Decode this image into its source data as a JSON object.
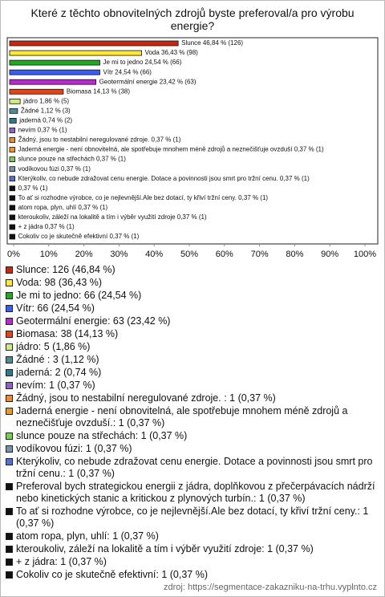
{
  "chart_data": {
    "type": "barh",
    "title": "Které z těchto obnovitelných zdrojů byste preferoval/a pro výrobu energie?",
    "values": [
      46.84,
      36.43,
      24.54,
      24.54,
      23.42,
      14.13,
      1.86,
      1.12,
      0.74,
      0.37,
      0.37,
      0.37,
      0.37,
      0.37,
      0.37,
      0.37,
      0.37,
      0.37,
      0.37,
      0.37,
      0.37
    ],
    "value_labels": [
      "Slunce 46,84 % (126)",
      "Voda 36,43 % (98)",
      "Je mi to jedno 24,54 % (66)",
      "Vítr 24,54 % (66)",
      "Geotermální energie 23,42 % (63)",
      "Biomasa 14,13 % (38)",
      "jádro 1,86 % (5)",
      "Žádné  1,12 % (3)",
      "jaderná 0,74 % (2)",
      "nevím 0,37 % (1)",
      "Žádný, jsou to nestabilní neregulované zdroje.  0,37 % (1)",
      "Jaderná energie - není obnovitelná, ale spotřebuje mnohem méně zdrojů a neznečišťuje ovzduší 0,37 % (1)",
      "slunce pouze na střechách 0,37 % (1)",
      "vodíkovou fúzi 0,37 % (1)",
      "Kterýkoliv, co nebude zdražovat cenu energie. Dotace a povinnosti jsou smrt pro tržní cenu. 0,37 % (1)",
      "0,37 % (1)",
      "To ať si rozhodne výrobce, co je nejlevnější.Ale bez dotací, ty křiví tržní ceny. 0,37 % (1)",
      "atom ropa, plyn, uhlí 0,37 % (1)",
      "kteroukoliv, záleží na lokalitě a tím i výběr využití zdroje 0,37 % (1)",
      "+ z jádra 0,37 % (1)",
      "Cokoliv co je skutečně efektivní 0,37 % (1)"
    ],
    "colors": [
      "#c8280f",
      "#ffe933",
      "#22a822",
      "#3a5cf0",
      "#b52ccc",
      "#e0461a",
      "#cdeb8b",
      "#4f8a96",
      "#2f7a8a",
      "#8f62c8",
      "#ee8a30",
      "#e89a28",
      "#7fc85f",
      "#7993a6",
      "#5870c8",
      "#111111",
      "#111111",
      "#111111",
      "#111111",
      "#111111",
      "#111111"
    ],
    "legend_labels": [
      "Slunce: 126 (46,84 %)",
      "Voda: 98 (36,43 %)",
      "Je mi to jedno: 66 (24,54 %)",
      "Vítr: 66 (24,54 %)",
      "Geotermální energie: 63 (23,42 %)",
      "Biomasa: 38 (14,13 %)",
      "jádro: 5 (1,86 %)",
      "Žádné : 3 (1,12 %)",
      "jaderná: 2 (0,74 %)",
      "nevím: 1 (0,37 %)",
      "Žádný, jsou to nestabilní neregulované zdroje. : 1 (0,37 %)",
      "Jaderná energie - není obnovitelná, ale spotřebuje mnohem méně zdrojů a neznečišťuje ovzduší.: 1 (0,37 %)",
      "slunce pouze na střechách: 1 (0,37 %)",
      "vodíkovou fúzi: 1 (0,37 %)",
      "Kterýkoliv, co nebude zdražovat cenu energie. Dotace a povinnosti jsou smrt pro tržní cenu.: 1 (0,37 %)",
      "Preferoval bych strategickou energii z jádra, doplňkovou z přečerpávacích nádrží nebo kinetických stanic a kritickou z plynových turbín.: 1 (0,37 %)",
      "To ať si rozhodne výrobce, co je nejlevnější.Ale bez dotací, ty křiví tržní ceny.: 1 (0,37 %)",
      "atom ropa, plyn, uhlí: 1 (0,37 %)",
      "kteroukoliv, záleží na lokalitě a tím i výběr využití zdroje: 1 (0,37 %)",
      "+ z jádra: 1 (0,37 %)",
      "Cokoliv co je skutečně efektivní: 1 (0,37 %)"
    ],
    "xlim": [
      0,
      100
    ],
    "xticks": [
      {
        "value": 0,
        "label": "0%"
      },
      {
        "value": 10,
        "label": "10%"
      },
      {
        "value": 20,
        "label": "20%"
      },
      {
        "value": 30,
        "label": "30%"
      },
      {
        "value": 40,
        "label": "40%"
      },
      {
        "value": 50,
        "label": "50%"
      },
      {
        "value": 60,
        "label": "60%"
      },
      {
        "value": 70,
        "label": "70%"
      },
      {
        "value": 80,
        "label": "80%"
      },
      {
        "value": 90,
        "label": "90%"
      },
      {
        "value": 100,
        "label": "100%"
      }
    ],
    "source": "zdroj: https://segmentace-zakazniku-na-trhu.vyplnto.cz"
  }
}
